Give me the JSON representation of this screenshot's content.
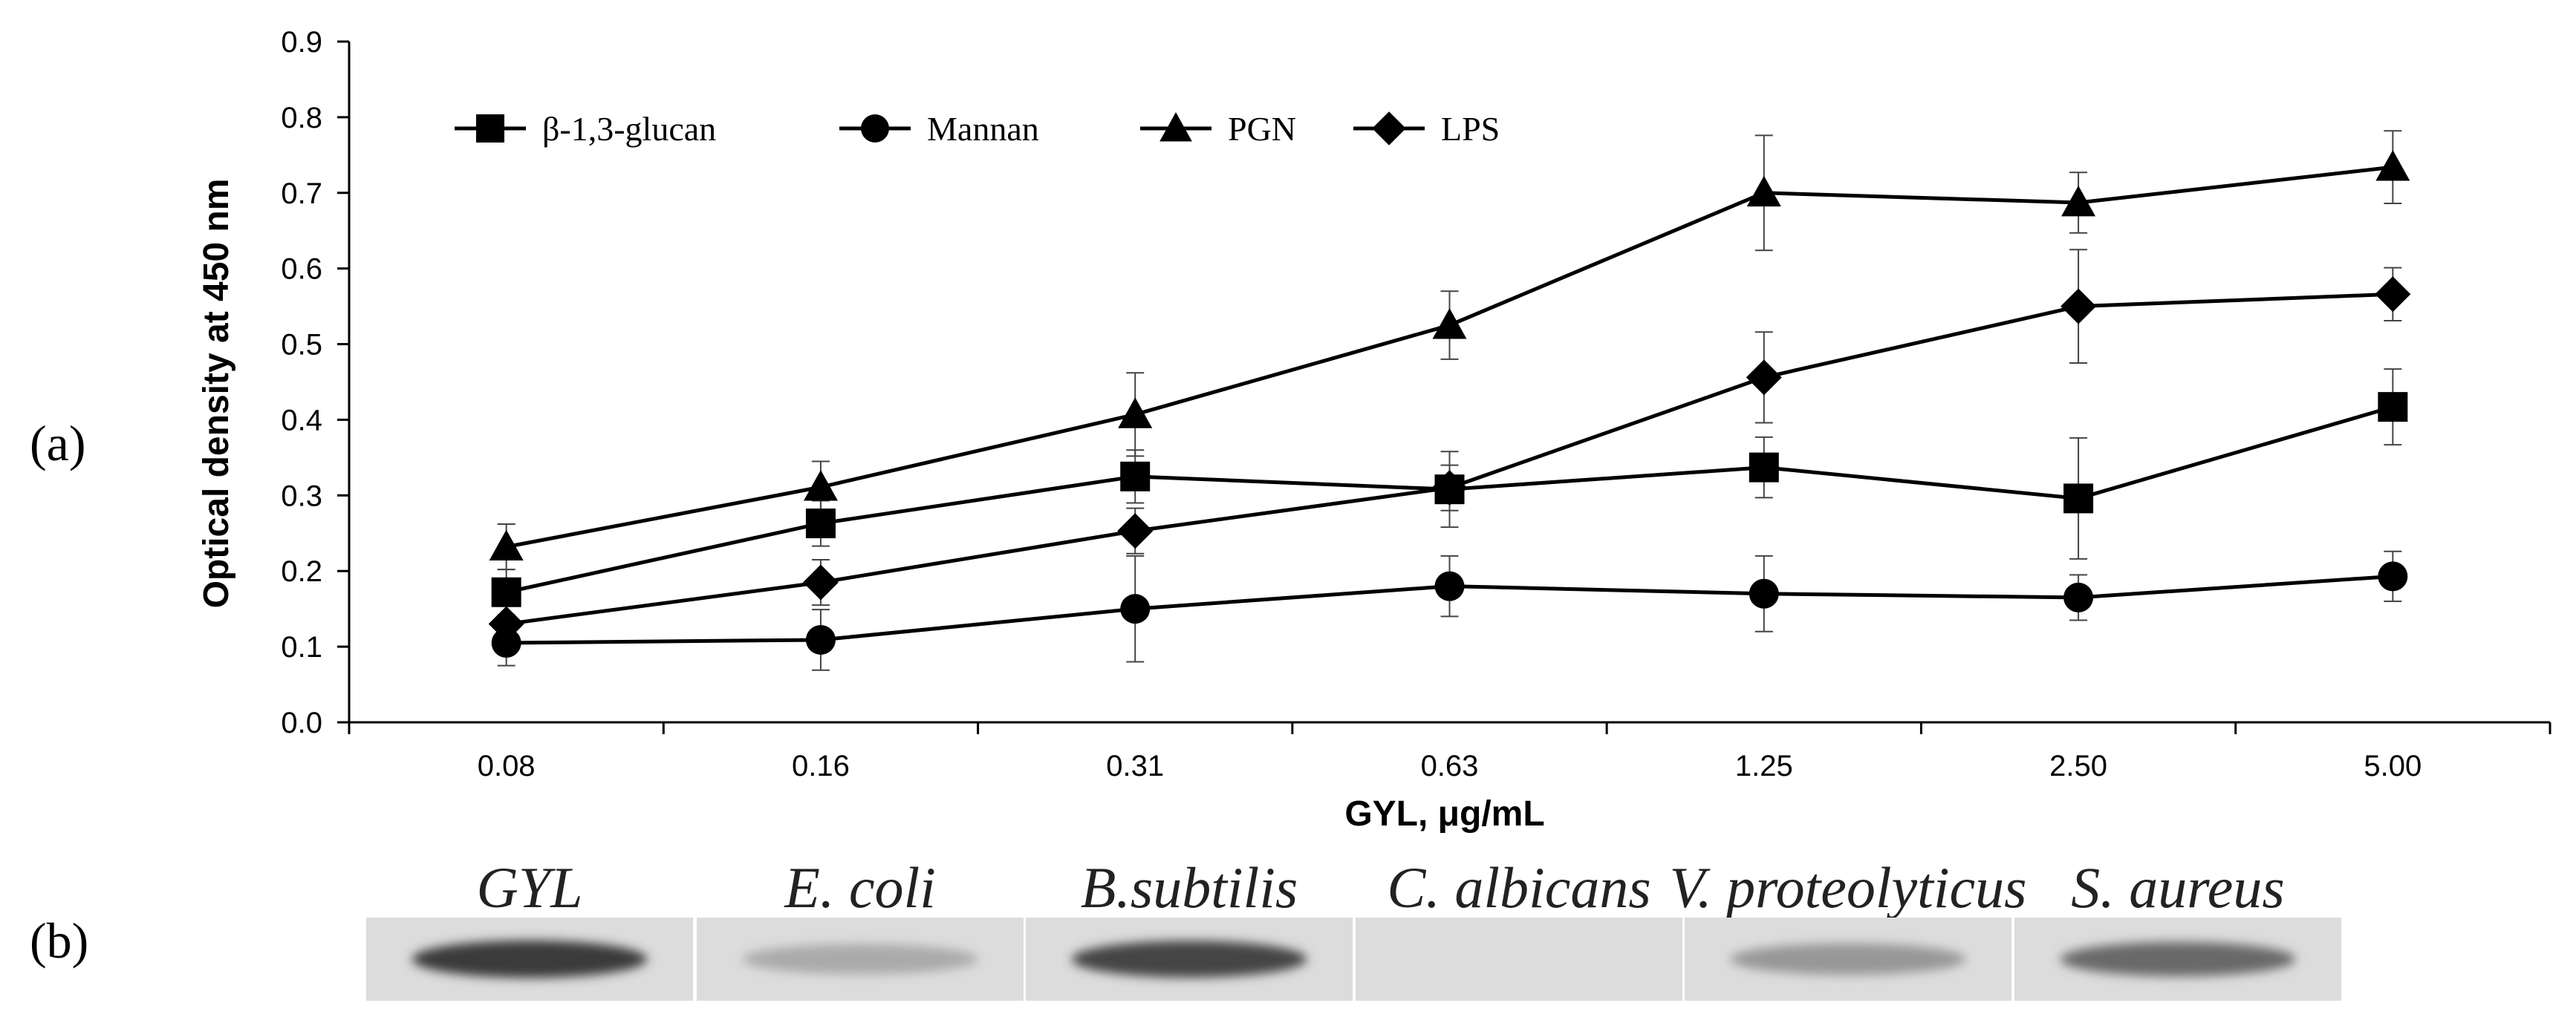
{
  "panel_labels": {
    "a": "(a)",
    "b": "(b)"
  },
  "chart_data": {
    "type": "line",
    "title": "",
    "xlabel": "GYL, μg/mL",
    "ylabel": "Optical density at 450 nm",
    "categories": [
      "0.08",
      "0.16",
      "0.31",
      "0.63",
      "1.25",
      "2.50",
      "5.00"
    ],
    "ylim": [
      0,
      0.9
    ],
    "yticks": [
      "0.0",
      "0.1",
      "0.2",
      "0.3",
      "0.4",
      "0.5",
      "0.6",
      "0.7",
      "0.8",
      "0.9"
    ],
    "legend_position": "top-left",
    "series": [
      {
        "name": "β-1,3-glucan",
        "marker": "square",
        "values": [
          0.172,
          0.263,
          0.325,
          0.308,
          0.337,
          0.296,
          0.417
        ],
        "errors": [
          0.03,
          0.03,
          0.035,
          0.05,
          0.04,
          0.08,
          0.05
        ]
      },
      {
        "name": "Mannan",
        "marker": "circle",
        "values": [
          0.105,
          0.109,
          0.15,
          0.18,
          0.17,
          0.165,
          0.193
        ],
        "errors": [
          0.03,
          0.04,
          0.07,
          0.04,
          0.05,
          0.03,
          0.033
        ]
      },
      {
        "name": "PGN",
        "marker": "triangle",
        "values": [
          0.232,
          0.311,
          0.407,
          0.525,
          0.7,
          0.687,
          0.734
        ],
        "errors": [
          0.03,
          0.034,
          0.055,
          0.045,
          0.076,
          0.04,
          0.048
        ]
      },
      {
        "name": "LPS",
        "marker": "diamond",
        "values": [
          0.13,
          0.185,
          0.253,
          0.31,
          0.456,
          0.55,
          0.566
        ],
        "errors": [
          0.03,
          0.03,
          0.03,
          0.03,
          0.06,
          0.075,
          0.035
        ]
      }
    ]
  },
  "blot": {
    "lane_labels": [
      "GYL",
      "E. coli",
      "B.subtilis",
      "C. albicans",
      "V. proteolyticus",
      "S. aureus"
    ],
    "band_intensity": [
      0.9,
      0.3,
      0.85,
      0.0,
      0.4,
      0.65
    ]
  }
}
